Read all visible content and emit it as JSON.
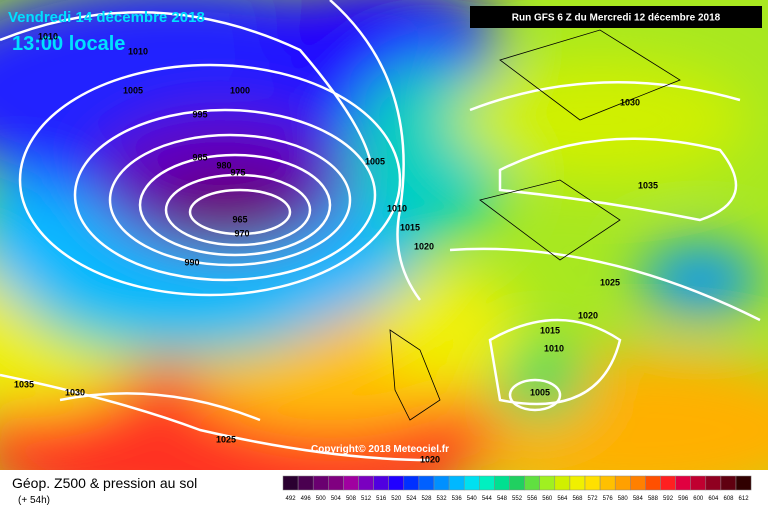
{
  "header": {
    "date": "Vendredi 14 décembre 2018",
    "time": "13:00 locale",
    "run": "Run GFS 6 Z du Mercredi 12 décembre 2018"
  },
  "copyright": "Copyright© 2018 Meteociel.fr",
  "isobar_labels": [
    1010,
    1010,
    1005,
    1000,
    995,
    985,
    980,
    975,
    965,
    970,
    990,
    1005,
    1010,
    1015,
    1020,
    1030,
    1035,
    1025,
    1020,
    1015,
    1010,
    1005,
    1035,
    1030,
    1025,
    1020
  ],
  "legend": {
    "title": "Géop. Z500 & pression au sol",
    "lead": "(+ 54h)",
    "values": [
      492,
      496,
      500,
      504,
      508,
      512,
      516,
      520,
      524,
      528,
      532,
      536,
      540,
      544,
      548,
      552,
      556,
      560,
      564,
      568,
      572,
      576,
      580,
      584,
      588,
      592,
      596,
      600,
      604,
      608,
      612
    ],
    "colors": [
      "#2a0030",
      "#4a0050",
      "#6a0070",
      "#800080",
      "#a000a0",
      "#7a00c0",
      "#5000e0",
      "#2000ff",
      "#0030ff",
      "#0060ff",
      "#0090ff",
      "#00b8ff",
      "#00e0f0",
      "#00f0c0",
      "#00e090",
      "#20d060",
      "#60e040",
      "#a0f020",
      "#d0f000",
      "#f0f000",
      "#ffe000",
      "#ffc000",
      "#ffa000",
      "#ff8000",
      "#ff5000",
      "#ff2020",
      "#e00040",
      "#c00030",
      "#900020",
      "#600010",
      "#300000"
    ]
  }
}
